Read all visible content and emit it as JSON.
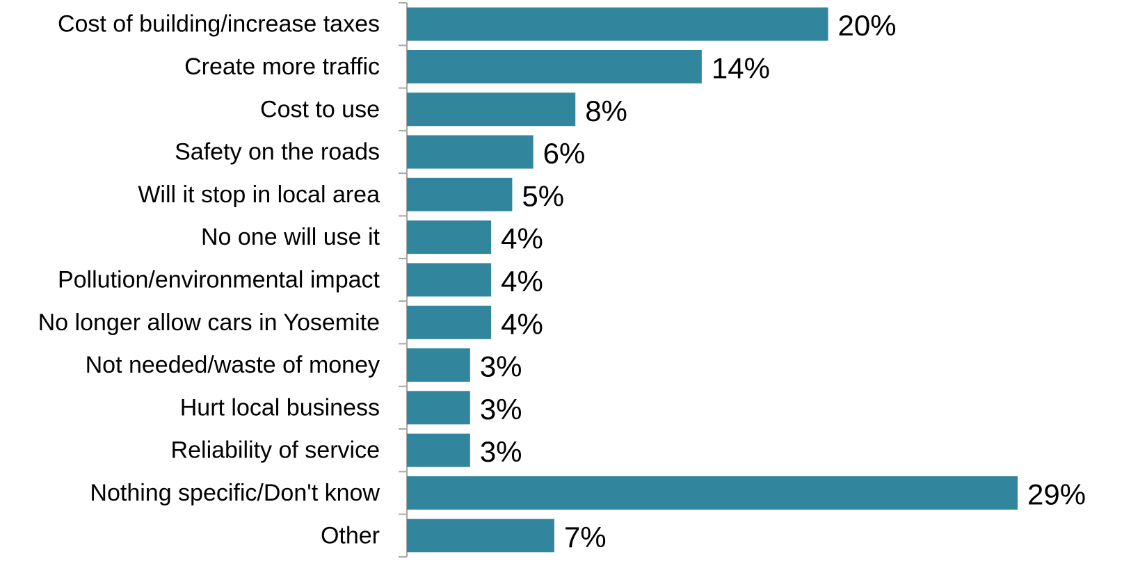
{
  "chart_data": {
    "type": "bar",
    "orientation": "horizontal",
    "categories": [
      "Cost of building/increase taxes",
      "Create more traffic",
      "Cost to use",
      "Safety on the roads",
      "Will it stop in local area",
      "No one will use it",
      "Pollution/environmental impact",
      "No longer allow cars in Yosemite",
      "Not needed/waste of money",
      "Hurt local business",
      "Reliability of service",
      "Nothing specific/Don't know",
      "Other"
    ],
    "values": [
      20,
      14,
      8,
      6,
      5,
      4,
      4,
      4,
      3,
      3,
      3,
      29,
      7
    ],
    "value_labels": [
      "20%",
      "14%",
      "8%",
      "6%",
      "5%",
      "4%",
      "4%",
      "4%",
      "3%",
      "3%",
      "3%",
      "29%",
      "7%"
    ],
    "bar_color": "#31859C",
    "axis_color": "#A6A6A6",
    "grid": false,
    "legend": "none",
    "xlim": [
      0,
      29
    ]
  }
}
